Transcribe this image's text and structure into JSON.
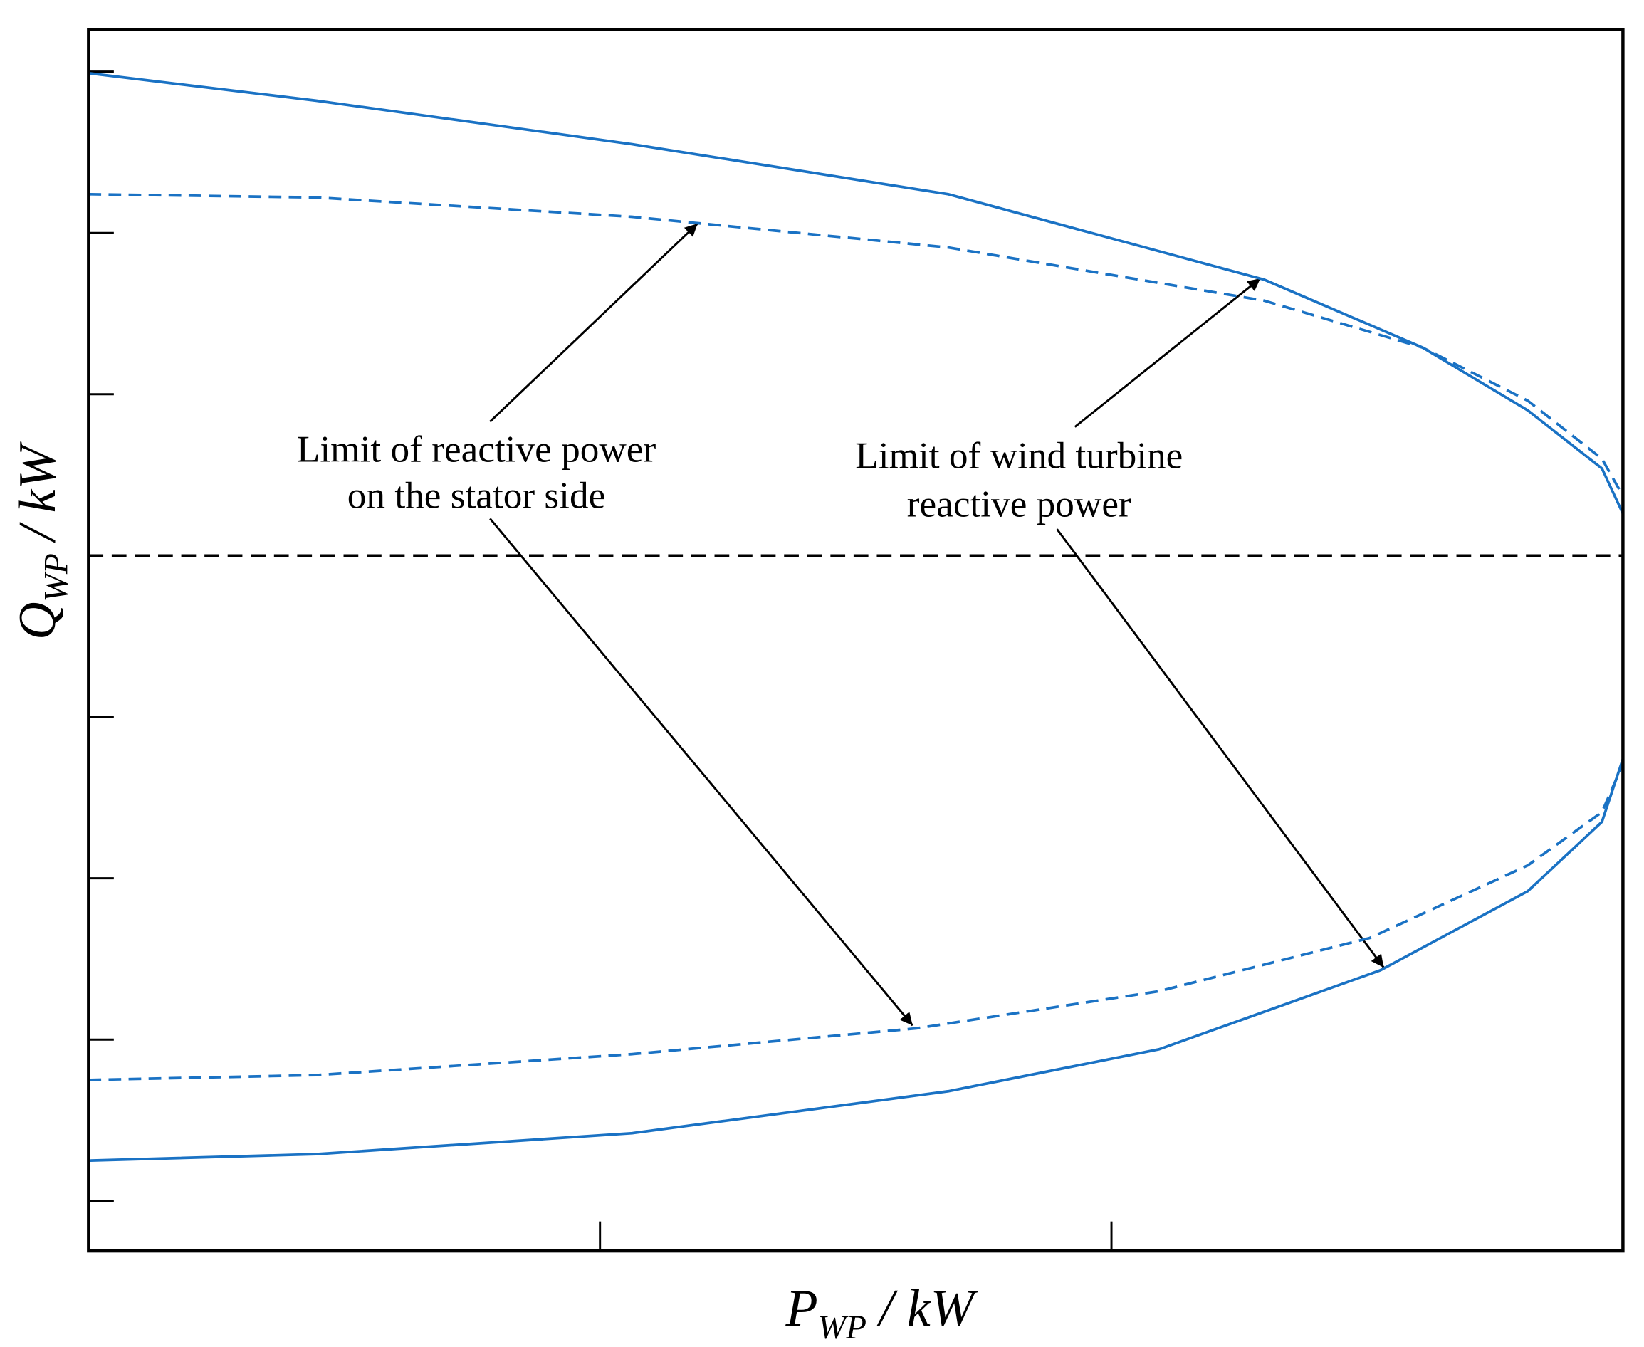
{
  "chart_data": {
    "type": "line",
    "x_label": {
      "symbol": "P",
      "subscript": "WP",
      "unit": "/ kW"
    },
    "y_label": {
      "symbol": "Q",
      "subscript": "WP",
      "unit": "/ kW"
    },
    "xlim": [
      0,
      3
    ],
    "xticks": [
      1,
      2
    ],
    "ylim": [
      -4.31,
      3.26
    ],
    "yticks": [
      -4,
      -3,
      -2,
      -1,
      1,
      2,
      3
    ],
    "reference_line": {
      "y": 0,
      "color": "#000000",
      "style": "dashed"
    },
    "series": [
      {
        "color": "#1a72c4",
        "style": "solid",
        "x": [
          0,
          0.445,
          1.063,
          1.681,
          2.299,
          2.608,
          2.814,
          2.959,
          3
        ],
        "values": [
          2.99,
          2.82,
          2.55,
          2.24,
          1.71,
          1.29,
          0.9,
          0.54,
          0.26
        ]
      },
      {
        "color": "#1a72c4",
        "style": "dashed",
        "x": [
          0,
          0.445,
          1.063,
          1.681,
          2.299,
          2.608,
          2.814,
          2.959,
          3
        ],
        "values": [
          2.24,
          2.22,
          2.1,
          1.91,
          1.58,
          1.29,
          0.96,
          0.6,
          0.37
        ]
      },
      {
        "color": "#1a72c4",
        "style": "dashed",
        "x": [
          0,
          0.445,
          1.063,
          1.619,
          2.093,
          2.505,
          2.814,
          2.959,
          3
        ],
        "values": [
          -3.25,
          -3.22,
          -3.09,
          -2.93,
          -2.7,
          -2.37,
          -1.92,
          -1.59,
          -1.29
        ]
      },
      {
        "color": "#1a72c4",
        "style": "solid",
        "x": [
          0,
          0.445,
          1.063,
          1.681,
          2.093,
          2.526,
          2.814,
          2.959,
          3
        ],
        "values": [
          -3.75,
          -3.71,
          -3.58,
          -3.32,
          -3.06,
          -2.57,
          -2.08,
          -1.65,
          -1.26
        ]
      }
    ],
    "annotations": [
      {
        "lines": [
          "Limit of reactive power",
          "on the stator side"
        ]
      },
      {
        "lines": [
          "Limit of wind turbine",
          "reactive power"
        ]
      }
    ]
  }
}
